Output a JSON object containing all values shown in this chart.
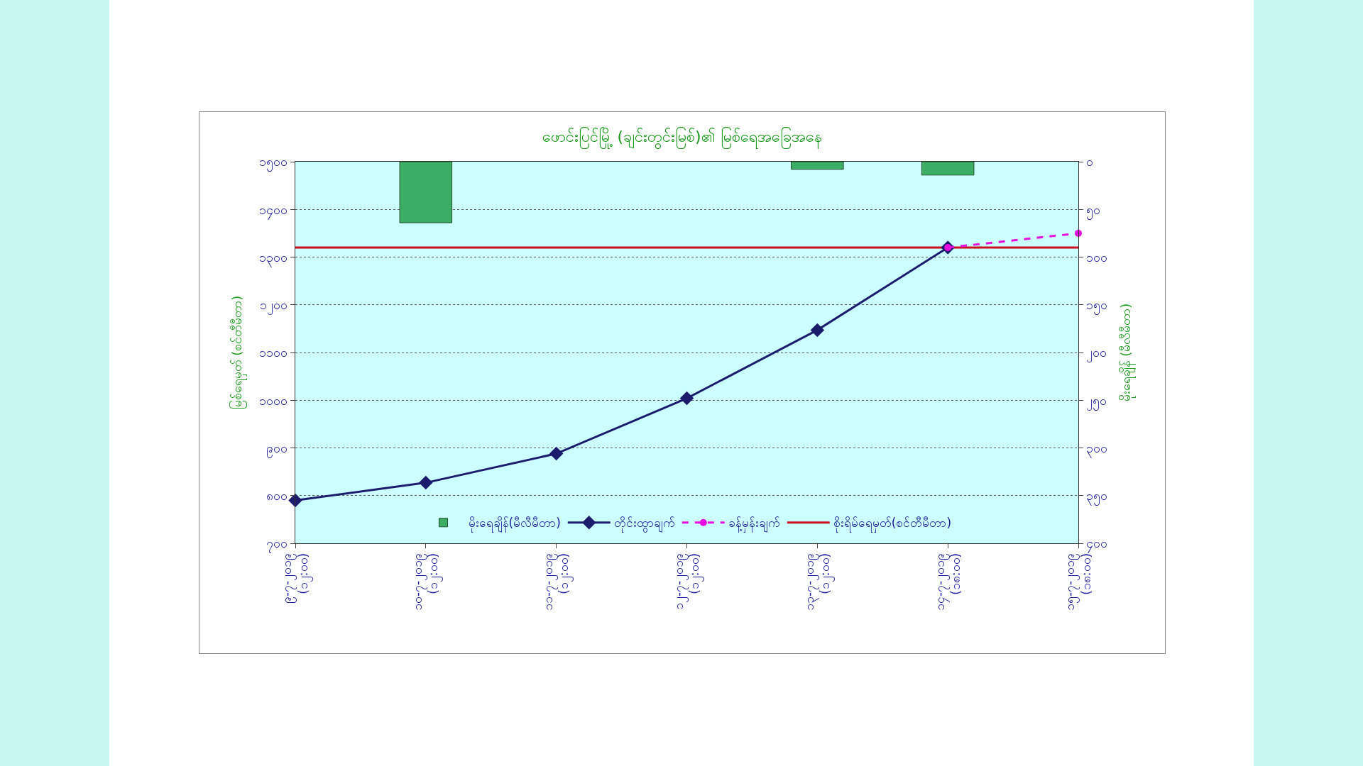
{
  "chart_data": {
    "type": "line",
    "title": "ဖောင်းပြင်မြို့ (ချင်းတွင်းမြစ်)၏ မြစ်ရေအခြေအနေ",
    "ylabel": "မြစ်ရေမှတ် (စင်တီမီတာ)",
    "y2label": "မိုးရေချိန် (မီလီမီတာ)",
    "categories": [
      "၉-၇-၂၀၁၉\n(၁၂:၀၀)",
      "၁၀-၇-၂၀၁၉\n(၁၂:၀၀)",
      "၁၁-၇-၂၀၁၉\n(၁၂:၀၀)",
      "၁၂-၇-၂၀၁၉\n(၁၂:၀၀)",
      "၁၃-၇-၂၀၁၉\n(၁၂:၀၀)",
      "၁၄-၇-၂၀၁၉\n(၁၈:၀၀)",
      "၁၅-၇-၂၀၁၉\n(၁၈:၀၀)"
    ],
    "series": [
      {
        "type": "bar",
        "axis": "y2",
        "name": "မိုးရေချိန်(မီလီမီတာ)",
        "color": "#3cad64",
        "values": [
          null,
          64,
          null,
          null,
          8,
          14,
          null
        ]
      },
      {
        "name": "တိုင်းထွာချက်",
        "color": "#1c1c6e",
        "marker": "diamond",
        "line_style": "solid",
        "values": [
          790,
          827,
          888,
          1004,
          1147,
          1320,
          null
        ]
      },
      {
        "name": "ခန့်မှန်းချက်",
        "color": "#e60fe0",
        "marker": "circle",
        "line_style": "dashed",
        "values": [
          null,
          null,
          null,
          null,
          null,
          1320,
          1350
        ]
      }
    ],
    "ref_lines": [
      {
        "axis": "y",
        "value": 1320,
        "label": "စိုးရိမ်ရေမှတ်(စင်တီမီတာ)",
        "color": "#cc1020"
      }
    ],
    "ylim": [
      700,
      1500
    ],
    "yticks": [
      {
        "value": 700,
        "label": "၇၀၀"
      },
      {
        "value": 800,
        "label": "၈၀၀"
      },
      {
        "value": 900,
        "label": "၉၀၀"
      },
      {
        "value": 1000,
        "label": "၁၀၀၀"
      },
      {
        "value": 1100,
        "label": "၁၁၀၀"
      },
      {
        "value": 1200,
        "label": "၁၂၀၀"
      },
      {
        "value": 1300,
        "label": "၁၃၀၀"
      },
      {
        "value": 1400,
        "label": "၁၄၀၀"
      },
      {
        "value": 1500,
        "label": "၁၅၀၀"
      }
    ],
    "y2lim": [
      400,
      0
    ],
    "y2ticks": [
      {
        "value": 0,
        "label": "၀"
      },
      {
        "value": 50,
        "label": "၅၀"
      },
      {
        "value": 100,
        "label": "၁၀၀"
      },
      {
        "value": 150,
        "label": "၁၅၀"
      },
      {
        "value": 200,
        "label": "၂၀၀"
      },
      {
        "value": 250,
        "label": "၂၅၀"
      },
      {
        "value": 300,
        "label": "၃၀၀"
      },
      {
        "value": 350,
        "label": "၃၅၀"
      },
      {
        "value": 400,
        "label": "၄၀၀"
      }
    ],
    "grid": "y",
    "legend": "bottom"
  }
}
